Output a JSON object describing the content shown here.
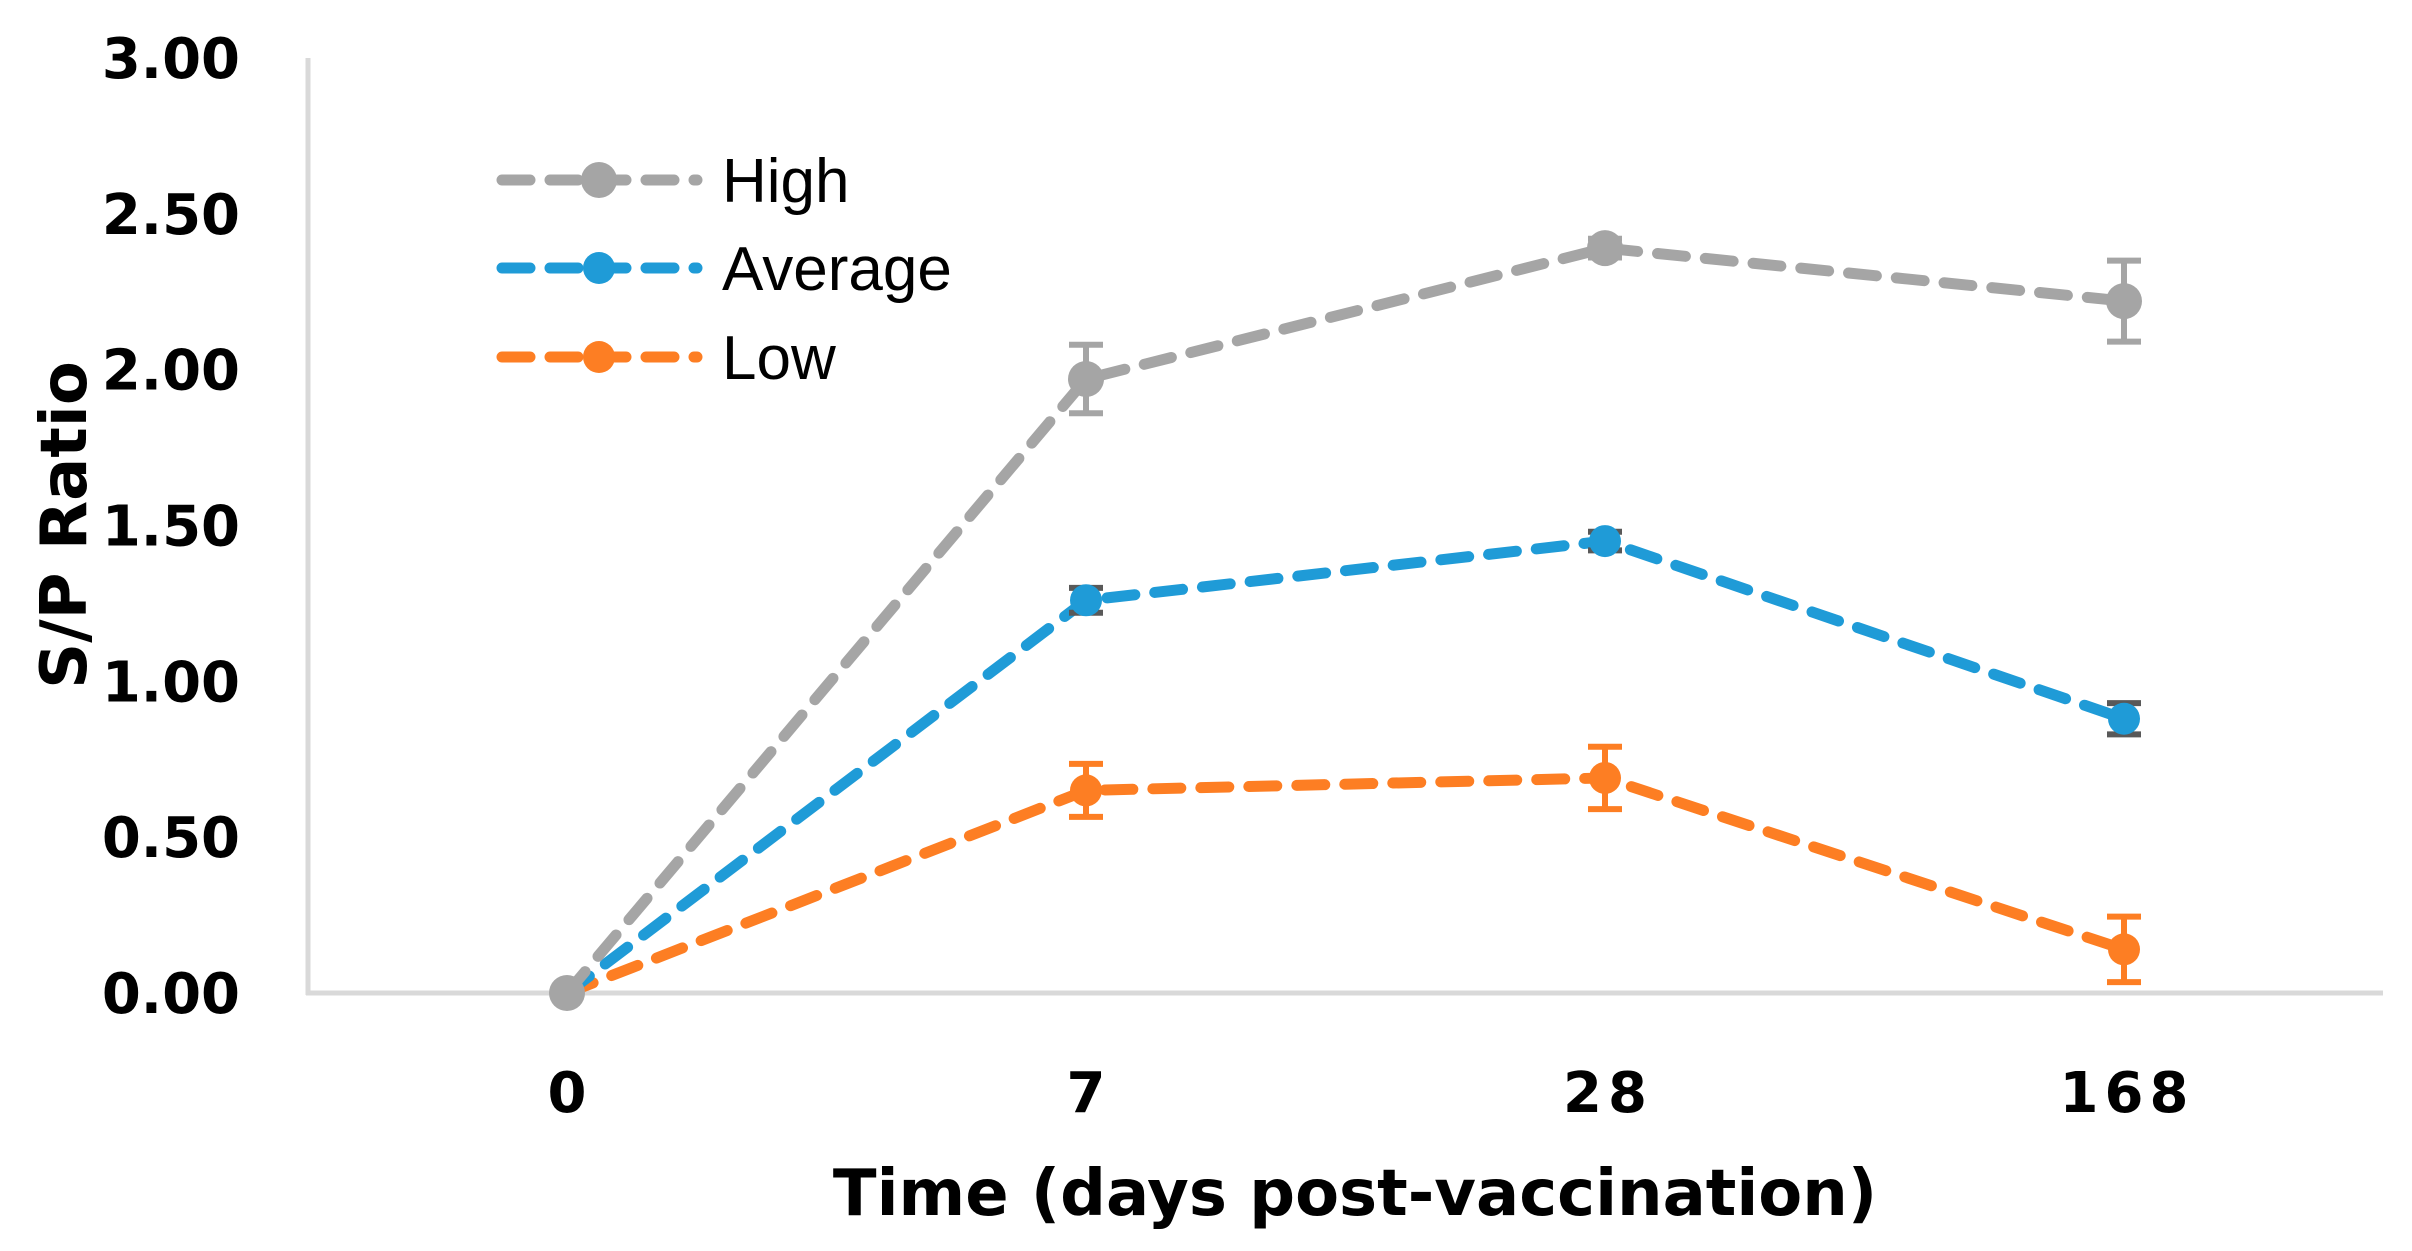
{
  "chart_data": {
    "type": "line",
    "title": "",
    "xlabel": "Time (days post-vaccination)",
    "ylabel": "S/P Ratio",
    "categories": [
      "0",
      "7",
      "28",
      "168"
    ],
    "ylim": [
      0,
      3
    ],
    "yticks": [
      0,
      0.5,
      1.0,
      1.5,
      2.0,
      2.5,
      3.0
    ],
    "ytick_labels": [
      "0.00",
      "0.50",
      "1.00",
      "1.50",
      "2.00",
      "2.50",
      "3.00"
    ],
    "grid": false,
    "legend_position": "top-left",
    "line_style": "dashed",
    "series": [
      {
        "name": "High",
        "color": "#a5a5a5",
        "errorbar_color": "#a5a5a5",
        "values": [
          0.0,
          1.97,
          2.39,
          2.22
        ],
        "errors": [
          0.0,
          0.11,
          0.03,
          0.13
        ]
      },
      {
        "name": "Average",
        "color": "#1f9bd7",
        "errorbar_color": "#595959",
        "values": [
          0.0,
          1.26,
          1.45,
          0.88
        ],
        "errors": [
          0.0,
          0.04,
          0.03,
          0.05
        ]
      },
      {
        "name": "Low",
        "color": "#fd7e23",
        "errorbar_color": "#fd7e23",
        "values": [
          0.0,
          0.65,
          0.69,
          0.14
        ],
        "errors": [
          0.0,
          0.085,
          0.1,
          0.105
        ]
      }
    ]
  }
}
